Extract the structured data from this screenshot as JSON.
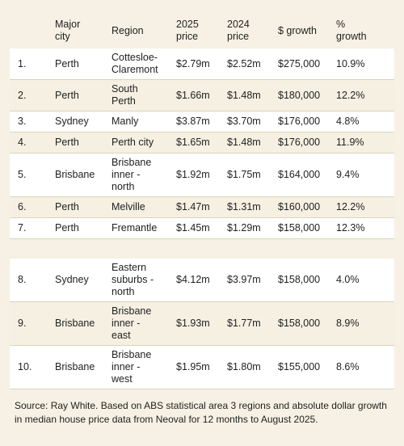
{
  "headers": {
    "rank": "",
    "city": "Major\ncity",
    "region": "Region",
    "price_2025": "2025\nprice",
    "price_2024": "2024\nprice",
    "growth": "$ growth",
    "pct": "%\ngrowth"
  },
  "rows": [
    {
      "rank": "1.",
      "city": "Perth",
      "region": "Cottesloe-\nClaremont",
      "p25": "$2.79m",
      "p24": "$2.52m",
      "growth": "$275,000",
      "pct": "10.9%"
    },
    {
      "rank": "2.",
      "city": "Perth",
      "region": "South\nPerth",
      "p25": "$1.66m",
      "p24": "$1.48m",
      "growth": "$180,000",
      "pct": "12.2%"
    },
    {
      "rank": "3.",
      "city": "Sydney",
      "region": "Manly",
      "p25": "$3.87m",
      "p24": "$3.70m",
      "growth": "$176,000",
      "pct": "4.8%"
    },
    {
      "rank": "4.",
      "city": "Perth",
      "region": "Perth city",
      "p25": "$1.65m",
      "p24": "$1.48m",
      "growth": "$176,000",
      "pct": "11.9%"
    },
    {
      "rank": "5.",
      "city": "Brisbane",
      "region": "Brisbane\ninner -\nnorth",
      "p25": "$1.92m",
      "p24": "$1.75m",
      "growth": "$164,000",
      "pct": "9.4%"
    },
    {
      "rank": "6.",
      "city": "Perth",
      "region": "Melville",
      "p25": "$1.47m",
      "p24": "$1.31m",
      "growth": "$160,000",
      "pct": "12.2%"
    },
    {
      "rank": "7.",
      "city": "Perth",
      "region": "Fremantle",
      "p25": "$1.45m",
      "p24": "$1.29m",
      "growth": "$158,000",
      "pct": "12.3%"
    },
    {
      "rank": "8.",
      "city": "Sydney",
      "region": "Eastern\nsuburbs -\nnorth",
      "p25": "$4.12m",
      "p24": "$3.97m",
      "growth": "$158,000",
      "pct": "4.0%"
    },
    {
      "rank": "9.",
      "city": "Brisbane",
      "region": "Brisbane\ninner -\neast",
      "p25": "$1.93m",
      "p24": "$1.77m",
      "growth": "$158,000",
      "pct": "8.9%"
    },
    {
      "rank": "10.",
      "city": "Brisbane",
      "region": "Brisbane\ninner -\nwest",
      "p25": "$1.95m",
      "p24": "$1.80m",
      "growth": "$155,000",
      "pct": "8.6%"
    }
  ],
  "source_note": "Source: Ray White. Based on ABS statistical area 3 regions and absolute dollar growth in median house price data from Neoval for 12 months to August 2025."
}
